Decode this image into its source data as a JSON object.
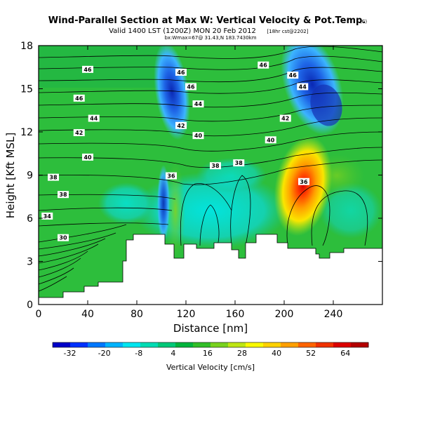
{
  "header": {
    "title": "Wind-Parallel Section at Max W: Vertical Velocity & Pot.Temp.",
    "title_mark": "(C)",
    "valid_line": "Valid 1400 LST (1200Z) MON 20 Feb 2012",
    "valid_note": "[18hr cst@2202]",
    "sub_line": "bx:Wmax=67@ 31.43,N 183.7430km"
  },
  "chart_data": {
    "type": "heatmap",
    "xlabel": "Distance [nm]",
    "ylabel": "Height [Kft MSL]",
    "xlim": [
      0,
      280
    ],
    "ylim": [
      0,
      18
    ],
    "x_ticks": [
      "0",
      "40",
      "80",
      "120",
      "160",
      "200",
      "240"
    ],
    "y_ticks": [
      "0",
      "3",
      "6",
      "9",
      "12",
      "15",
      "18"
    ],
    "colorbar": {
      "label": "Vertical Velocity [cm/s]",
      "ticks": [
        "-32",
        "-20",
        "-8",
        "4",
        "16",
        "28",
        "40",
        "52",
        "64"
      ],
      "range": [
        -38,
        72
      ],
      "colors": [
        "#0000c8",
        "#0032ff",
        "#0078ff",
        "#00b4ff",
        "#00e6f0",
        "#00dcb4",
        "#00c878",
        "#00b43c",
        "#32be28",
        "#78d21e",
        "#bee614",
        "#fafa00",
        "#ffd200",
        "#ffa000",
        "#ff6400",
        "#f03200",
        "#dc0000",
        "#b40000"
      ]
    },
    "contour_labels": {
      "top_left": [
        "46",
        "46",
        "44",
        "42",
        "40",
        "38",
        "38",
        "34",
        "30"
      ],
      "mid": [
        "46",
        "46",
        "44",
        "42",
        "40",
        "38",
        "36"
      ],
      "right": [
        "46",
        "46",
        "44",
        "42",
        "40",
        "38",
        "36"
      ]
    }
  }
}
